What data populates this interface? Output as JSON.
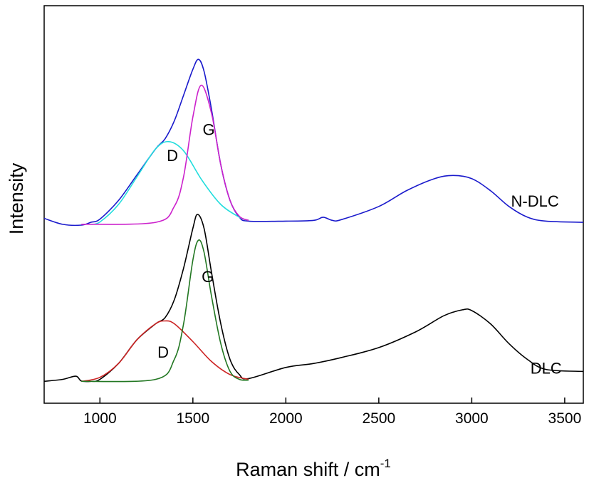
{
  "chart_data": {
    "type": "line",
    "xlabel": "Raman shift / cm",
    "xlabel_superscript": "-1",
    "ylabel": "Intensity",
    "xlim": [
      700,
      3600
    ],
    "ylim": [
      0,
      1.0
    ],
    "x_ticks": [
      1000,
      1500,
      2000,
      2500,
      3000,
      3500
    ],
    "y_ticks_labeled": false,
    "grid": false,
    "series": [
      {
        "name": "N-DLC",
        "color": "#1a1acc",
        "x": [
          700,
          800,
          900,
          950,
          1000,
          1100,
          1200,
          1300,
          1350,
          1400,
          1450,
          1500,
          1530,
          1560,
          1600,
          1650,
          1700,
          1750,
          1800,
          2000,
          2150,
          2200,
          2250,
          2300,
          2500,
          2650,
          2800,
          2900,
          3000,
          3100,
          3200,
          3300,
          3400,
          3600
        ],
        "y": [
          0.465,
          0.45,
          0.448,
          0.455,
          0.463,
          0.51,
          0.575,
          0.64,
          0.665,
          0.71,
          0.775,
          0.84,
          0.865,
          0.835,
          0.74,
          0.6,
          0.51,
          0.468,
          0.458,
          0.458,
          0.46,
          0.468,
          0.46,
          0.462,
          0.495,
          0.535,
          0.565,
          0.573,
          0.565,
          0.535,
          0.495,
          0.468,
          0.458,
          0.455
        ]
      },
      {
        "name": "D",
        "color": "#22dddd",
        "x": [
          950,
          1000,
          1100,
          1200,
          1300,
          1370,
          1450,
          1550,
          1650,
          1750,
          1800
        ],
        "y": [
          0.45,
          0.456,
          0.5,
          0.57,
          0.64,
          0.658,
          0.635,
          0.56,
          0.5,
          0.468,
          0.46
        ]
      },
      {
        "name": "G",
        "color": "#cc22cc",
        "x": [
          900,
          1300,
          1400,
          1450,
          1500,
          1545,
          1600,
          1650,
          1700,
          1750,
          1800
        ],
        "y": [
          0.45,
          0.455,
          0.495,
          0.57,
          0.72,
          0.8,
          0.73,
          0.6,
          0.51,
          0.47,
          0.46
        ]
      },
      {
        "name": "DLC",
        "color": "#000000",
        "x": [
          700,
          800,
          870,
          900,
          950,
          1000,
          1100,
          1200,
          1300,
          1350,
          1400,
          1450,
          1500,
          1525,
          1560,
          1600,
          1650,
          1700,
          1750,
          1800,
          2000,
          2150,
          2300,
          2500,
          2700,
          2850,
          2950,
          3000,
          3100,
          3200,
          3300,
          3400,
          3600
        ],
        "y": [
          0.055,
          0.06,
          0.068,
          0.056,
          0.055,
          0.06,
          0.1,
          0.16,
          0.2,
          0.215,
          0.26,
          0.34,
          0.44,
          0.475,
          0.44,
          0.33,
          0.2,
          0.11,
          0.072,
          0.062,
          0.09,
          0.1,
          0.115,
          0.14,
          0.18,
          0.22,
          0.235,
          0.233,
          0.2,
          0.15,
          0.11,
          0.085,
          0.08
        ]
      },
      {
        "name": "D",
        "color": "#cc2222",
        "x": [
          900,
          1000,
          1100,
          1200,
          1300,
          1350,
          1400,
          1500,
          1600,
          1700,
          1800
        ],
        "y": [
          0.055,
          0.065,
          0.1,
          0.16,
          0.2,
          0.207,
          0.2,
          0.155,
          0.105,
          0.072,
          0.06
        ]
      },
      {
        "name": "G",
        "color": "#227722",
        "x": [
          900,
          1300,
          1400,
          1450,
          1500,
          1530,
          1560,
          1600,
          1650,
          1700,
          1750,
          1800
        ],
        "y": [
          0.055,
          0.06,
          0.11,
          0.2,
          0.36,
          0.41,
          0.38,
          0.27,
          0.15,
          0.08,
          0.06,
          0.058
        ]
      }
    ],
    "annotations": [
      {
        "text": "N-DLC",
        "x": 3340,
        "y": 0.505
      },
      {
        "text": "G",
        "x": 1585,
        "y": 0.685
      },
      {
        "text": "D",
        "x": 1390,
        "y": 0.62
      },
      {
        "text": "G",
        "x": 1580,
        "y": 0.315
      },
      {
        "text": "D",
        "x": 1340,
        "y": 0.125
      },
      {
        "text": "DLC",
        "x": 3400,
        "y": 0.085
      }
    ]
  }
}
